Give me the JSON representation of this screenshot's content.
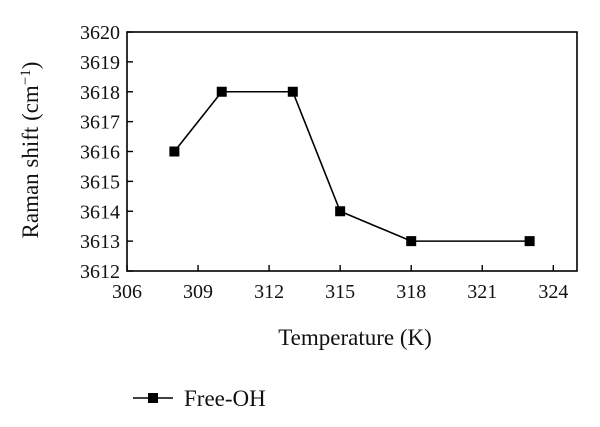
{
  "chart_data": {
    "type": "line",
    "x": [
      308,
      310,
      313,
      315,
      318,
      323
    ],
    "series": [
      {
        "name": "Free-OH",
        "values": [
          3616,
          3618,
          3618,
          3614,
          3613,
          3613
        ],
        "marker": "square",
        "color": "#000000"
      }
    ],
    "xlabel": "Temperature (K)",
    "ylabel": "Raman shift (cm",
    "ylabel_unit_exponent": "−1",
    "ylabel_close": ")",
    "xlim": [
      306,
      325
    ],
    "ylim": [
      3612,
      3620
    ],
    "xticks": [
      306,
      309,
      312,
      315,
      318,
      321,
      324
    ],
    "yticks": [
      3612,
      3613,
      3614,
      3615,
      3616,
      3617,
      3618,
      3619,
      3620
    ],
    "grid": false,
    "legend_position": "bottom-left"
  }
}
